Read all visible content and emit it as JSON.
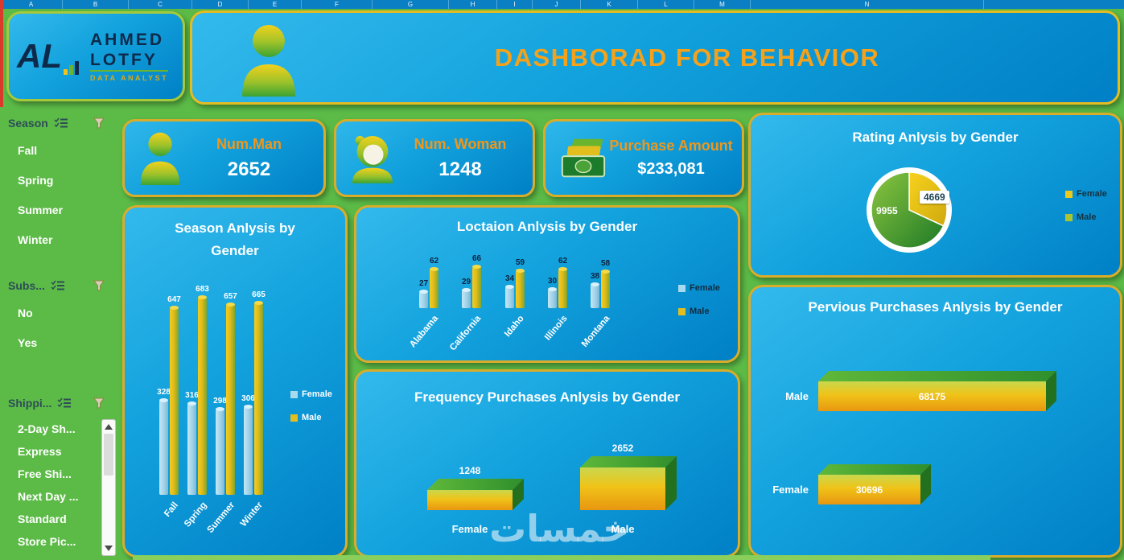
{
  "spreadsheet": {
    "columns": [
      "A",
      "B",
      "C",
      "D",
      "E",
      "F",
      "G",
      "H",
      "I",
      "J",
      "K",
      "L",
      "M",
      "N"
    ]
  },
  "logo": {
    "mark": "AL",
    "name_line1": "AHMED",
    "name_line2": "LOTFY",
    "subtitle": "DATA ANALYST"
  },
  "header": {
    "title": "DASHBORAD FOR  BEHAVIOR"
  },
  "sidebar": {
    "slicers": [
      {
        "title": "Season",
        "items": [
          "Fall",
          "Spring",
          "Summer",
          "Winter"
        ],
        "has_scrollbar": false
      },
      {
        "title": "Subs...",
        "items": [
          "No",
          "Yes"
        ],
        "has_scrollbar": false
      },
      {
        "title": "Shippi...",
        "items": [
          "2-Day Sh...",
          "Express",
          "Free Shi...",
          "Next Day ...",
          "Standard",
          "Store Pic..."
        ],
        "has_scrollbar": true
      }
    ]
  },
  "kpis": [
    {
      "label": "Num.Man",
      "value": "2652",
      "icon": "man-icon"
    },
    {
      "label": "Num. Woman",
      "value": "1248",
      "icon": "woman-icon"
    },
    {
      "label": "Purchase Amount",
      "value": "$233,081",
      "icon": "money-icon"
    }
  ],
  "colors": {
    "background_green": "#5cbb47",
    "panel_blue_light": "#33b9ec",
    "panel_blue_dark": "#0080c6",
    "gold_border": "#d9ad2a",
    "title_orange": "#f5a21a",
    "female_blue": "#a9d9ee",
    "male_yellow": "#e2bf1f"
  },
  "watermark": "خمسات",
  "chart_data": [
    {
      "id": "season",
      "type": "bar",
      "bar_style": "cylinder",
      "title": "Season Anlysis by Gender",
      "categories": [
        "Fall",
        "Spring",
        "Summer",
        "Winter"
      ],
      "series": [
        {
          "name": "Female",
          "values": [
            328,
            316,
            298,
            306
          ]
        },
        {
          "name": "Male",
          "values": [
            647,
            683,
            657,
            665
          ]
        }
      ],
      "ylim": [
        0,
        700
      ],
      "grid": false,
      "legend_position": "right"
    },
    {
      "id": "location",
      "type": "bar",
      "bar_style": "cylinder",
      "title": "Loctaion Anlysis by Gender",
      "categories": [
        "Alabama",
        "California",
        "Idaho",
        "Illinois",
        "Montana"
      ],
      "series": [
        {
          "name": "Female",
          "values": [
            27,
            29,
            34,
            30,
            38
          ]
        },
        {
          "name": "Male",
          "values": [
            62,
            66,
            59,
            62,
            58
          ]
        }
      ],
      "ylim": [
        0,
        70
      ],
      "grid": false,
      "legend_position": "right"
    },
    {
      "id": "rating",
      "type": "pie",
      "title": "Rating Anlysis by Gender",
      "slices": [
        {
          "name": "Female",
          "value": 4669
        },
        {
          "name": "Male",
          "value": 9955
        }
      ],
      "legend_position": "right"
    },
    {
      "id": "previous",
      "type": "bar",
      "orientation": "horizontal",
      "bar_style": "3d",
      "title": "Pervious Purchases Anlysis by Gender",
      "categories": [
        "Male",
        "Female"
      ],
      "values": [
        68175,
        30696
      ],
      "xlim": [
        0,
        75000
      ],
      "grid": false
    },
    {
      "id": "frequency",
      "type": "bar",
      "bar_style": "3d",
      "title": "Frequency Purchases Anlysis by Gender",
      "categories": [
        "Female",
        "Male"
      ],
      "values": [
        1248,
        2652
      ],
      "ylim": [
        0,
        3000
      ],
      "grid": false
    }
  ]
}
